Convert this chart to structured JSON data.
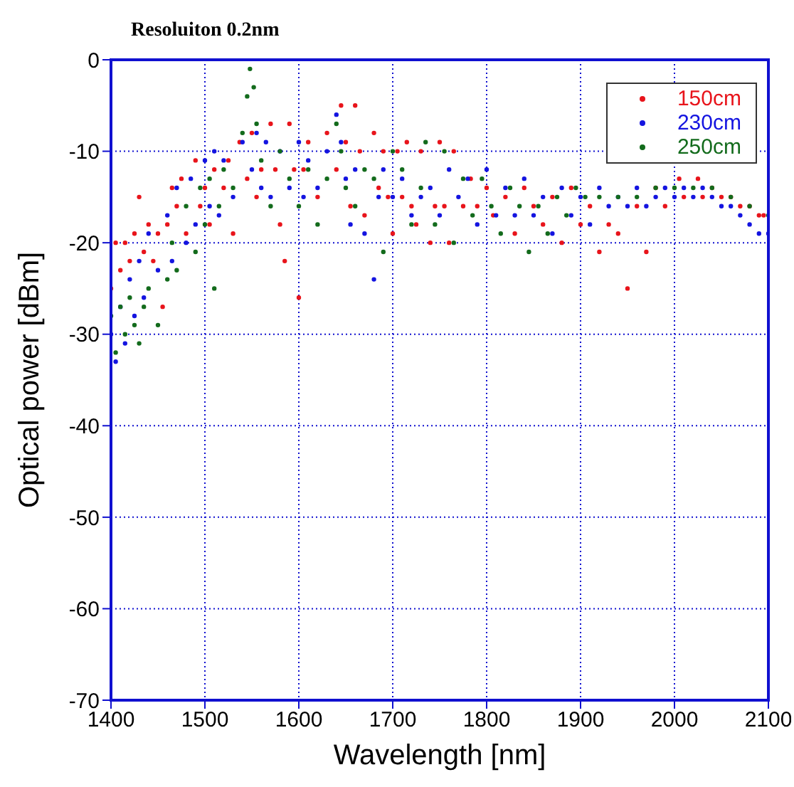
{
  "chart_data": {
    "type": "scatter",
    "title": "Resoluiton 0.2nm",
    "xlabel": "Wavelength [nm]",
    "ylabel": "Optical power [dBm]",
    "xlim": [
      1400,
      2100
    ],
    "xticks": [
      1400,
      1500,
      1600,
      1700,
      1800,
      1900,
      2000,
      2100
    ],
    "ylim": [
      -70,
      0
    ],
    "yticks": [
      -70,
      -60,
      -50,
      -40,
      -30,
      -20,
      -10,
      0
    ],
    "grid": true,
    "legend": "top right",
    "marker": "circle",
    "series": [
      {
        "name": "150cm",
        "color": "#e8141b",
        "x": [
          1400,
          1405,
          1410,
          1415,
          1420,
          1425,
          1430,
          1435,
          1440,
          1445,
          1450,
          1455,
          1460,
          1465,
          1470,
          1475,
          1480,
          1490,
          1495,
          1500,
          1505,
          1510,
          1520,
          1525,
          1530,
          1537,
          1545,
          1550,
          1555,
          1560,
          1570,
          1575,
          1580,
          1585,
          1590,
          1595,
          1600,
          1605,
          1610,
          1620,
          1630,
          1640,
          1645,
          1650,
          1655,
          1660,
          1665,
          1670,
          1680,
          1685,
          1690,
          1695,
          1700,
          1705,
          1710,
          1715,
          1720,
          1725,
          1730,
          1740,
          1745,
          1750,
          1755,
          1760,
          1765,
          1775,
          1783,
          1790,
          1800,
          1807,
          1820,
          1830,
          1840,
          1850,
          1860,
          1870,
          1880,
          1890,
          1900,
          1910,
          1920,
          1930,
          1940,
          1950,
          1960,
          1970,
          1980,
          1990,
          2005,
          2010,
          2025,
          2030,
          2040,
          2050,
          2060,
          2070,
          2080,
          2090,
          2095
        ],
        "values": [
          -25,
          -20,
          -23,
          -20,
          -22,
          -19,
          -15,
          -21,
          -18,
          -22,
          -19,
          -27,
          -18,
          -14,
          -16,
          -13,
          -19,
          -11,
          -16,
          -14,
          -18,
          -12,
          -14,
          -11,
          -19,
          -9,
          -13,
          -8,
          -15,
          -12,
          -7,
          -12,
          -18,
          -22,
          -7,
          -12,
          -26,
          -12,
          -9,
          -15,
          -8,
          -12,
          -5,
          -9,
          -16,
          -5,
          -10,
          -17,
          -8,
          -14,
          -10,
          -15,
          -19,
          -10,
          -15,
          -9,
          -16,
          -18,
          -10,
          -20,
          -16,
          -9,
          -16,
          -20,
          -10,
          -16,
          -13,
          -16,
          -14,
          -17,
          -15,
          -19,
          -14,
          -16,
          -18,
          -15,
          -20,
          -14,
          -18,
          -16,
          -21,
          -18,
          -19,
          -25,
          -16,
          -21,
          -14,
          -16,
          -13,
          -15,
          -13,
          -15,
          -14,
          -15,
          -15,
          -16,
          -16,
          -17,
          -17
        ]
      },
      {
        "name": "230cm",
        "color": "#1414e0",
        "x": [
          1400,
          1405,
          1410,
          1415,
          1420,
          1425,
          1430,
          1435,
          1440,
          1450,
          1460,
          1465,
          1470,
          1480,
          1485,
          1490,
          1500,
          1505,
          1510,
          1515,
          1520,
          1530,
          1540,
          1550,
          1555,
          1560,
          1565,
          1570,
          1580,
          1590,
          1600,
          1605,
          1610,
          1620,
          1630,
          1640,
          1645,
          1650,
          1655,
          1660,
          1670,
          1680,
          1685,
          1690,
          1700,
          1710,
          1720,
          1730,
          1740,
          1750,
          1760,
          1770,
          1780,
          1790,
          1800,
          1810,
          1820,
          1830,
          1840,
          1850,
          1860,
          1870,
          1880,
          1890,
          1900,
          1910,
          1920,
          1930,
          1940,
          1950,
          1960,
          1970,
          1980,
          1990,
          2000,
          2010,
          2020,
          2030,
          2040,
          2050,
          2060,
          2070,
          2080,
          2090,
          2100
        ],
        "values": [
          -30,
          -33,
          -27,
          -31,
          -24,
          -28,
          -22,
          -26,
          -19,
          -23,
          -17,
          -22,
          -14,
          -20,
          -13,
          -18,
          -11,
          -16,
          -10,
          -17,
          -11,
          -15,
          -9,
          -12,
          -8,
          -14,
          -9,
          -15,
          -10,
          -14,
          -9,
          -15,
          -11,
          -14,
          -10,
          -6,
          -9,
          -13,
          -18,
          -12,
          -19,
          -24,
          -15,
          -12,
          -15,
          -13,
          -17,
          -15,
          -14,
          -17,
          -12,
          -15,
          -13,
          -18,
          -12,
          -17,
          -14,
          -17,
          -13,
          -17,
          -15,
          -19,
          -14,
          -17,
          -15,
          -18,
          -14,
          -16,
          -15,
          -16,
          -14,
          -16,
          -15,
          -14,
          -15,
          -14,
          -15,
          -14,
          -15,
          -16,
          -16,
          -17,
          -18,
          -19,
          -19
        ]
      },
      {
        "name": "250cm",
        "color": "#136b1c",
        "x": [
          1400,
          1405,
          1410,
          1415,
          1420,
          1425,
          1430,
          1435,
          1440,
          1450,
          1460,
          1465,
          1470,
          1480,
          1490,
          1495,
          1500,
          1505,
          1510,
          1515,
          1520,
          1530,
          1540,
          1545,
          1548,
          1552,
          1555,
          1560,
          1570,
          1580,
          1590,
          1600,
          1610,
          1620,
          1630,
          1640,
          1645,
          1650,
          1660,
          1670,
          1680,
          1690,
          1700,
          1710,
          1720,
          1730,
          1735,
          1745,
          1755,
          1765,
          1775,
          1785,
          1795,
          1805,
          1815,
          1825,
          1835,
          1845,
          1855,
          1865,
          1875,
          1885,
          1895,
          1905,
          1920,
          1940,
          1960,
          1980,
          2000,
          2020,
          2040,
          2060,
          2080,
          2100
        ],
        "values": [
          -28,
          -32,
          -27,
          -30,
          -26,
          -29,
          -31,
          -27,
          -25,
          -29,
          -24,
          -20,
          -23,
          -16,
          -21,
          -14,
          -18,
          -13,
          -25,
          -16,
          -12,
          -14,
          -8,
          -4,
          -1,
          -3,
          -7,
          -11,
          -16,
          -10,
          -13,
          -16,
          -12,
          -18,
          -13,
          -7,
          -10,
          -14,
          -16,
          -12,
          -13,
          -21,
          -10,
          -12,
          -18,
          -14,
          -9,
          -18,
          -10,
          -20,
          -13,
          -17,
          -13,
          -16,
          -19,
          -14,
          -16,
          -21,
          -16,
          -19,
          -15,
          -17,
          -14,
          -15,
          -15,
          -15,
          -15,
          -14,
          -14,
          -14,
          -14,
          -15,
          -16,
          -17
        ]
      }
    ]
  }
}
